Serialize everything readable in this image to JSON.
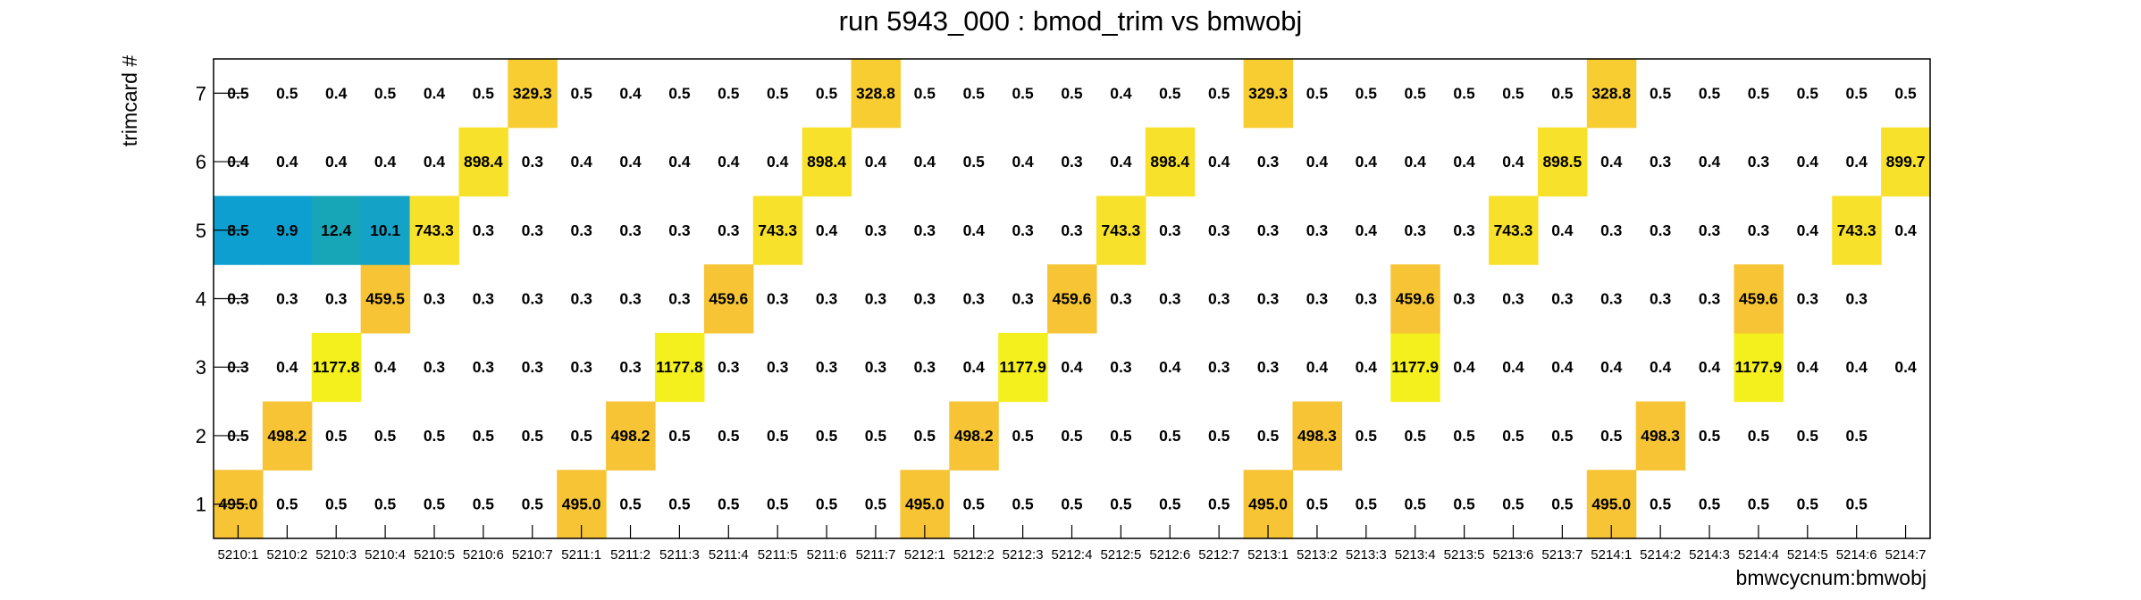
{
  "chart_data": {
    "type": "heatmap",
    "title": "run 5943_000 : bmod_trim vs bmwobj",
    "xlabel": "bmwcycnum:bmwobj",
    "ylabel": "trimcard #",
    "x_categories": [
      "5210:1",
      "5210:2",
      "5210:3",
      "5210:4",
      "5210:5",
      "5210:6",
      "5210:7",
      "5211:1",
      "5211:2",
      "5211:3",
      "5211:4",
      "5211:5",
      "5211:6",
      "5211:7",
      "5212:1",
      "5212:2",
      "5212:3",
      "5212:4",
      "5212:5",
      "5212:6",
      "5212:7",
      "5213:1",
      "5213:2",
      "5213:3",
      "5213:4",
      "5213:5",
      "5213:6",
      "5213:7",
      "5214:1",
      "5214:2",
      "5214:3",
      "5214:4",
      "5214:5",
      "5214:6",
      "5214:7"
    ],
    "y_categories": [
      "1",
      "2",
      "3",
      "4",
      "5",
      "6",
      "7"
    ],
    "values": [
      [
        495.0,
        0.5,
        0.5,
        0.5,
        0.5,
        0.5,
        0.5,
        495.0,
        0.5,
        0.5,
        0.5,
        0.5,
        0.5,
        0.5,
        495.0,
        0.5,
        0.5,
        0.5,
        0.5,
        0.5,
        0.5,
        495.0,
        0.5,
        0.5,
        0.5,
        0.5,
        0.5,
        0.5,
        495.0,
        0.5,
        0.5,
        0.5,
        0.5,
        0.5,
        null
      ],
      [
        0.5,
        498.2,
        0.5,
        0.5,
        0.5,
        0.5,
        0.5,
        0.5,
        498.2,
        0.5,
        0.5,
        0.5,
        0.5,
        0.5,
        0.5,
        498.2,
        0.5,
        0.5,
        0.5,
        0.5,
        0.5,
        0.5,
        498.3,
        0.5,
        0.5,
        0.5,
        0.5,
        0.5,
        0.5,
        498.3,
        0.5,
        0.5,
        0.5,
        0.5,
        null
      ],
      [
        0.3,
        0.4,
        1177.8,
        0.4,
        0.3,
        0.3,
        0.3,
        0.3,
        0.3,
        1177.8,
        0.3,
        0.3,
        0.3,
        0.3,
        0.3,
        0.4,
        1177.9,
        0.4,
        0.3,
        0.4,
        0.3,
        0.3,
        0.4,
        0.4,
        1177.9,
        0.4,
        0.4,
        0.4,
        0.4,
        0.4,
        0.4,
        1177.9,
        0.4,
        0.4,
        0.4
      ],
      [
        0.3,
        0.3,
        0.3,
        459.5,
        0.3,
        0.3,
        0.3,
        0.3,
        0.3,
        0.3,
        459.6,
        0.3,
        0.3,
        0.3,
        0.3,
        0.3,
        0.3,
        459.6,
        0.3,
        0.3,
        0.3,
        0.3,
        0.3,
        0.3,
        459.6,
        0.3,
        0.3,
        0.3,
        0.3,
        0.3,
        0.3,
        459.6,
        0.3,
        0.3,
        null
      ],
      [
        8.5,
        9.9,
        12.4,
        10.1,
        743.3,
        0.3,
        0.3,
        0.3,
        0.3,
        0.3,
        0.3,
        743.3,
        0.4,
        0.3,
        0.3,
        0.4,
        0.3,
        0.3,
        743.3,
        0.3,
        0.3,
        0.3,
        0.3,
        0.4,
        0.3,
        0.3,
        743.3,
        0.4,
        0.3,
        0.3,
        0.3,
        0.3,
        0.4,
        743.3,
        0.4
      ],
      [
        0.4,
        0.4,
        0.4,
        0.4,
        0.4,
        898.4,
        0.3,
        0.4,
        0.4,
        0.4,
        0.4,
        0.4,
        898.4,
        0.4,
        0.4,
        0.5,
        0.4,
        0.3,
        0.4,
        898.4,
        0.4,
        0.3,
        0.4,
        0.4,
        0.4,
        0.4,
        0.4,
        898.5,
        0.4,
        0.3,
        0.4,
        0.3,
        0.4,
        0.4,
        899.7
      ],
      [
        0.5,
        0.5,
        0.4,
        0.5,
        0.4,
        0.5,
        329.3,
        0.5,
        0.4,
        0.5,
        0.5,
        0.5,
        0.5,
        328.8,
        0.5,
        0.5,
        0.5,
        0.5,
        0.4,
        0.5,
        0.5,
        329.3,
        0.5,
        0.5,
        0.5,
        0.5,
        0.5,
        0.5,
        328.8,
        0.5,
        0.5,
        0.5,
        0.5,
        0.5,
        0.5
      ]
    ],
    "grid": false,
    "legend": "none",
    "colors": {
      "low_blue": "#0d9fd0",
      "mid_blue": "#14a3c7",
      "teal": "#17a5b8",
      "yellow_hi": "#f3f01e",
      "yellow_mid": "#f7e12a",
      "gold": "#f6c434",
      "gold_light": "#f7cd32"
    }
  }
}
